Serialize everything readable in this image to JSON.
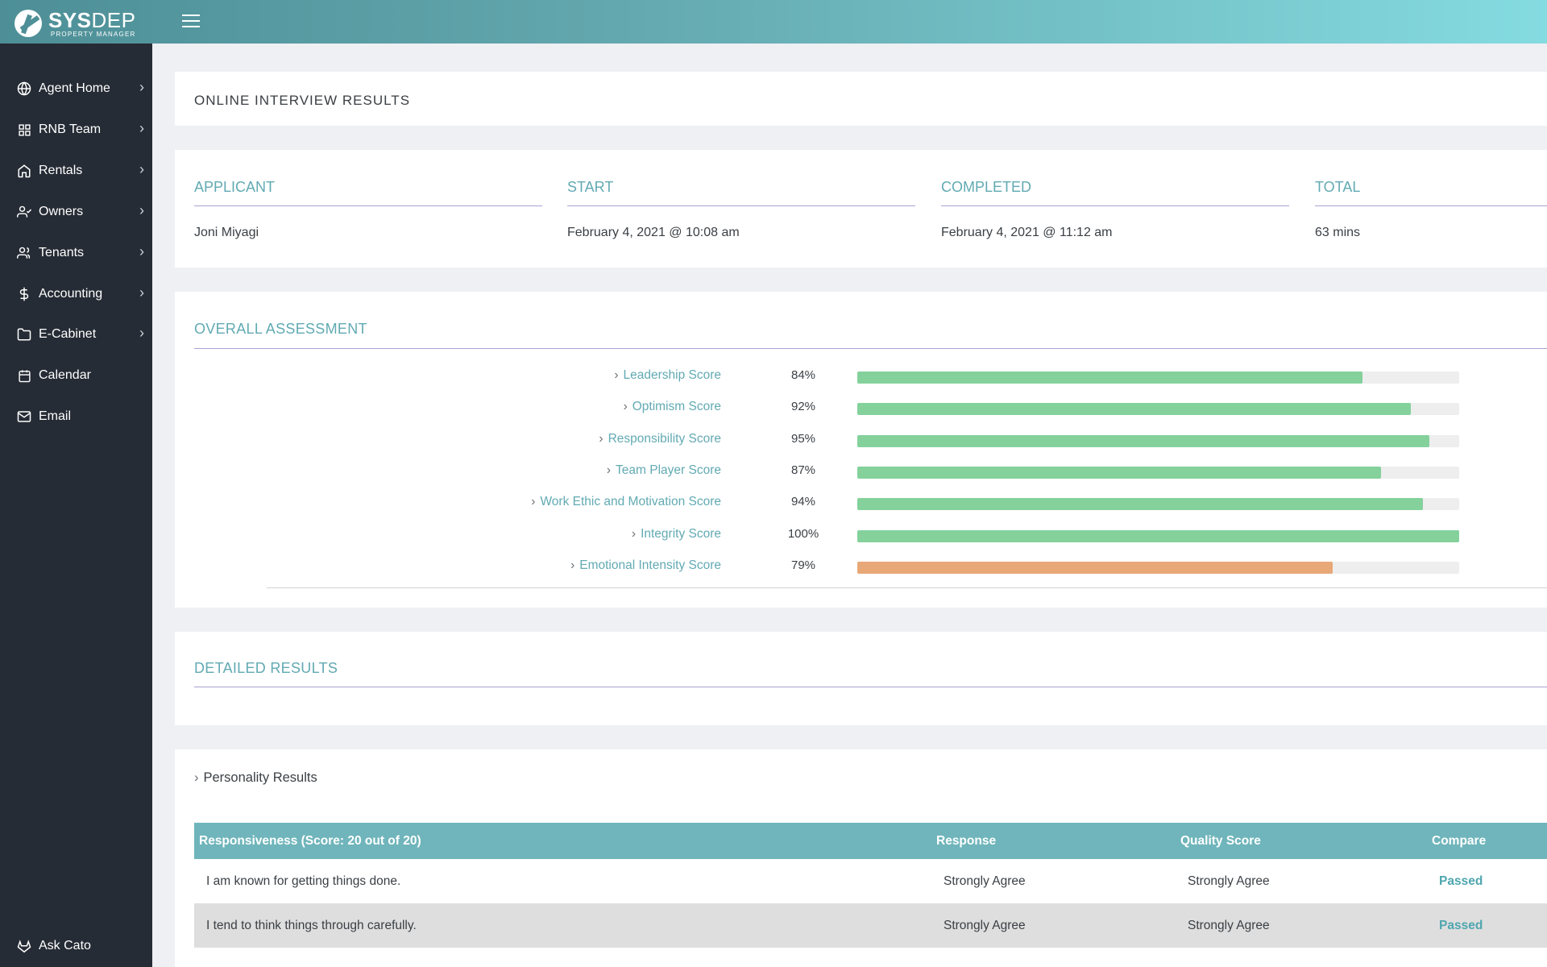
{
  "brand": {
    "name_bold": "SYS",
    "name_light": "DEP",
    "tagline": "PROPERTY MANAGER"
  },
  "sidebar": {
    "items": [
      {
        "label": "Agent Home",
        "icon": "globe-icon",
        "has_children": true
      },
      {
        "label": "RNB Team",
        "icon": "grid-icon",
        "has_children": true
      },
      {
        "label": "Rentals",
        "icon": "home-icon",
        "has_children": true
      },
      {
        "label": "Owners",
        "icon": "user-check-icon",
        "has_children": true
      },
      {
        "label": "Tenants",
        "icon": "users-icon",
        "has_children": true
      },
      {
        "label": "Accounting",
        "icon": "dollar-icon",
        "has_children": true
      },
      {
        "label": "E-Cabinet",
        "icon": "folder-icon",
        "has_children": true
      },
      {
        "label": "Calendar",
        "icon": "calendar-icon",
        "has_children": false
      },
      {
        "label": "Email",
        "icon": "mail-icon",
        "has_children": false
      }
    ],
    "footer_label": "Ask Cato",
    "footer_icon": "gitlab-icon"
  },
  "page_title": "ONLINE INTERVIEW RESULTS",
  "info": {
    "applicant": {
      "label": "APPLICANT",
      "value": "Joni Miyagi"
    },
    "start": {
      "label": "START",
      "value": "February 4, 2021 @ 10:08 am"
    },
    "completed": {
      "label": "COMPLETED",
      "value": "February 4, 2021 @ 11:12 am"
    },
    "total": {
      "label": "TOTAL",
      "value": "63 mins"
    }
  },
  "overall": {
    "heading": "OVERALL ASSESSMENT",
    "scores": [
      {
        "label": "Leadership Score",
        "pct_text": "84%",
        "value": 84,
        "status": "good"
      },
      {
        "label": "Optimism Score",
        "pct_text": "92%",
        "value": 92,
        "status": "good"
      },
      {
        "label": "Responsibility Score",
        "pct_text": "95%",
        "value": 95,
        "status": "good"
      },
      {
        "label": "Team Player Score",
        "pct_text": "87%",
        "value": 87,
        "status": "good"
      },
      {
        "label": "Work Ethic and Motivation Score",
        "pct_text": "94%",
        "value": 94,
        "status": "good"
      },
      {
        "label": "Integrity Score",
        "pct_text": "100%",
        "value": 100,
        "status": "good"
      },
      {
        "label": "Emotional Intensity Score",
        "pct_text": "79%",
        "value": 79,
        "status": "warn"
      }
    ],
    "colors": {
      "good": "#84d19c",
      "warn": "#e8a878"
    }
  },
  "detailed": {
    "heading": "DETAILED RESULTS"
  },
  "personality": {
    "toggle_label": "Personality Results",
    "table": {
      "headers": [
        "Responsiveness (Score: 20 out of 20)",
        "Response",
        "Quality Score",
        "Compare"
      ],
      "rows": [
        {
          "question": "I am known for getting things done.",
          "response": "Strongly Agree",
          "quality": "Strongly Agree",
          "compare": "Passed"
        },
        {
          "question": "I tend to think things through carefully.",
          "response": "Strongly Agree",
          "quality": "Strongly Agree",
          "compare": "Passed"
        }
      ]
    }
  }
}
